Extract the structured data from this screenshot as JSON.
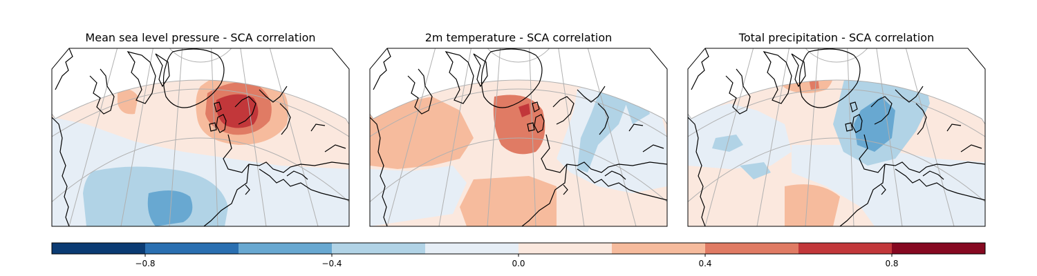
{
  "panels": [
    {
      "title": "Mean sea level pressure - SCA correlation",
      "variable": "msl"
    },
    {
      "title": "2m temperature - SCA correlation",
      "variable": "t2m"
    },
    {
      "title": "Total precipitation - SCA correlation",
      "variable": "tp"
    }
  ],
  "colorbar": {
    "min": -1.0,
    "max": 1.0,
    "levels": [
      -1.0,
      -0.8,
      -0.6,
      -0.4,
      -0.2,
      0.0,
      0.2,
      0.4,
      0.6,
      0.8,
      1.0
    ],
    "colors": [
      "#0b3b73",
      "#2a6fb1",
      "#68a8d1",
      "#b1d3e6",
      "#e6eef6",
      "#fbe8de",
      "#f6bb9d",
      "#e07b64",
      "#c2373a",
      "#860921"
    ],
    "ticks": [
      -0.8,
      -0.4,
      0.0,
      0.4,
      0.8
    ],
    "tick_labels": [
      "−0.8",
      "−0.4",
      "0.0",
      "0.4",
      "0.8"
    ]
  }
}
